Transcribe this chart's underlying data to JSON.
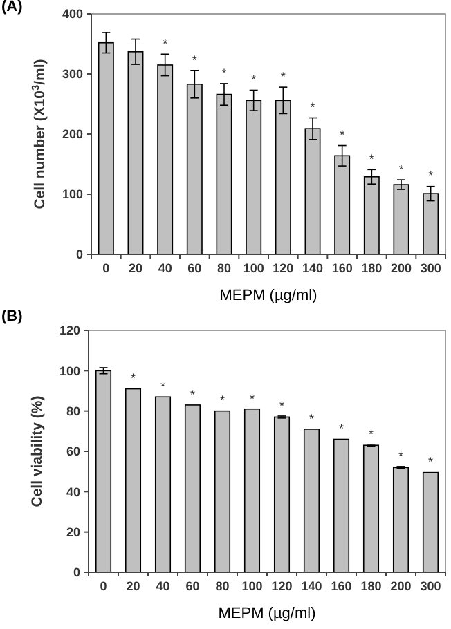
{
  "chart_data": [
    {
      "type": "bar",
      "title": "(A)",
      "xlabel": "MEPM (µg/ml)",
      "ylabel": "Cell number (X10$^{3}$/ml)",
      "color": "#c0c0c0",
      "ylim": [
        0,
        400
      ],
      "yticks": [
        0,
        100,
        200,
        300,
        400
      ],
      "grid": false,
      "categories": [
        "0",
        "20",
        "40",
        "60",
        "80",
        "100",
        "120",
        "140",
        "160",
        "180",
        "200",
        "300"
      ],
      "values": [
        352,
        337,
        315,
        283,
        266,
        256,
        256,
        209,
        164,
        129,
        116,
        101
      ],
      "errors": [
        17,
        21,
        18,
        23,
        18,
        17,
        22,
        18,
        17,
        12,
        8,
        12
      ],
      "annotations": [
        {
          "text": "*",
          "x": "40",
          "y": 315
        },
        {
          "text": "*",
          "x": "60",
          "y": 283
        },
        {
          "text": "*",
          "x": "80",
          "y": 266
        },
        {
          "text": "*",
          "x": "100",
          "y": 256
        },
        {
          "text": "*",
          "x": "120",
          "y": 256
        },
        {
          "text": "*",
          "x": "140",
          "y": 209
        },
        {
          "text": "*",
          "x": "160",
          "y": 164
        },
        {
          "text": "*",
          "x": "180",
          "y": 129
        },
        {
          "text": "*",
          "x": "200",
          "y": 116
        },
        {
          "text": "*",
          "x": "300",
          "y": 101
        }
      ]
    },
    {
      "type": "bar",
      "title": "(B)",
      "xlabel": "MEPM (µg/ml)",
      "ylabel": "Cell viability (%)",
      "color": "#c0c0c0",
      "ylim": [
        0,
        120
      ],
      "yticks": [
        0,
        20,
        40,
        60,
        80,
        100,
        120
      ],
      "grid": false,
      "categories": [
        "0",
        "20",
        "40",
        "60",
        "80",
        "100",
        "120",
        "140",
        "160",
        "180",
        "200",
        "300"
      ],
      "values": [
        100,
        91,
        87,
        83,
        80,
        81,
        77,
        71,
        66,
        63,
        52,
        49.5
      ],
      "errors": [
        1.5,
        null,
        null,
        null,
        null,
        null,
        0.5,
        null,
        null,
        0.5,
        0.5,
        null
      ],
      "annotations": [
        {
          "text": "*",
          "x": "20",
          "y": 91
        },
        {
          "text": "*",
          "x": "40",
          "y": 87
        },
        {
          "text": "*",
          "x": "60",
          "y": 83
        },
        {
          "text": "*",
          "x": "80",
          "y": 80
        },
        {
          "text": "*",
          "x": "100",
          "y": 81
        },
        {
          "text": "*",
          "x": "120",
          "y": 77
        },
        {
          "text": "*",
          "x": "140",
          "y": 71
        },
        {
          "text": "*",
          "x": "160",
          "y": 66
        },
        {
          "text": "*",
          "x": "180",
          "y": 63
        },
        {
          "text": "*",
          "x": "200",
          "y": 52
        },
        {
          "text": "*",
          "x": "300",
          "y": 49.5
        }
      ]
    }
  ]
}
